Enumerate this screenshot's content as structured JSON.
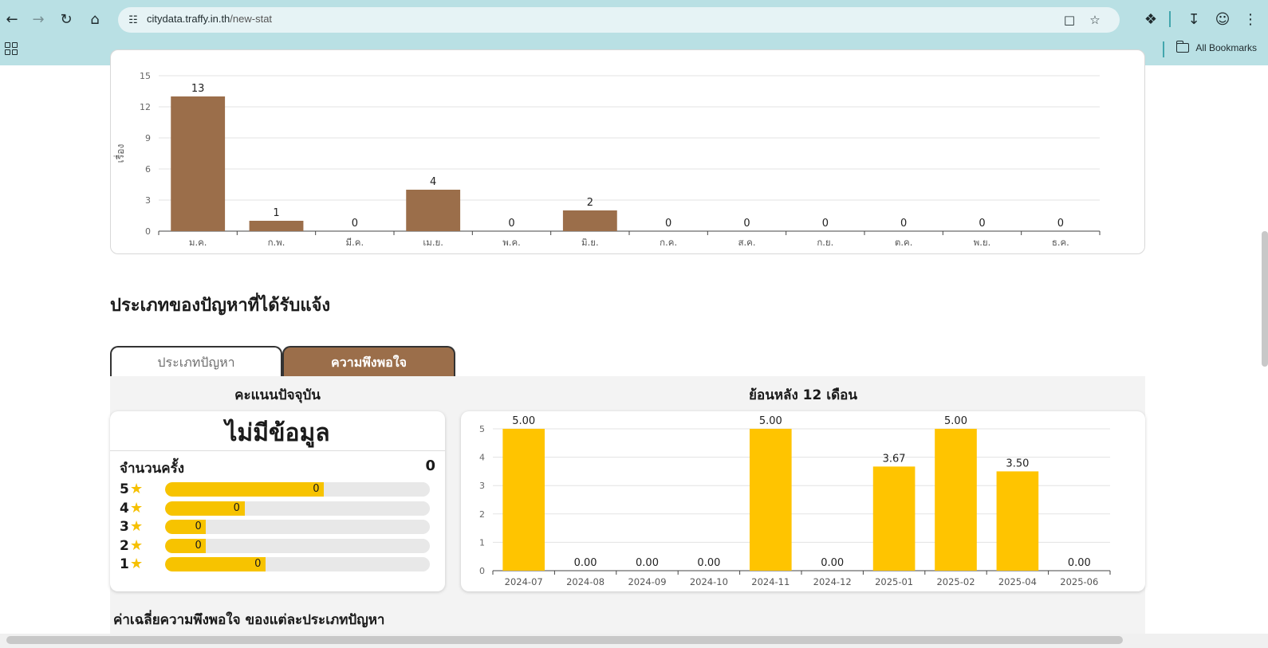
{
  "browser": {
    "url_host": "citydata.traffy.in.th",
    "url_path": "/new-stat",
    "bookmarks_label": "All Bookmarks"
  },
  "section_title": "ประเภทของปัญหาที่ได้รับแจ้ง",
  "tabs": [
    {
      "label": "ประเภทปัญหา",
      "active": false
    },
    {
      "label": "ความพึงพอใจ",
      "active": true
    }
  ],
  "satisfaction": {
    "current_heading": "คะแนนปัจจุบัน",
    "history_heading": "ย้อนหลัง 12 เดือน",
    "no_data": "ไม่มีข้อมูล",
    "count_label": "จำนวนครั้ง",
    "count_value": "0",
    "ratings": [
      {
        "stars": "5",
        "value": "0",
        "fill": 0.6
      },
      {
        "stars": "4",
        "value": "0",
        "fill": 0.3
      },
      {
        "stars": "3",
        "value": "0",
        "fill": 0.155
      },
      {
        "stars": "2",
        "value": "0",
        "fill": 0.155
      },
      {
        "stars": "1",
        "value": "0",
        "fill": 0.38
      }
    ],
    "avg_title": "ค่าเฉลี่ยความพึงพอใจ ของแต่ละประเภทปัญหา"
  },
  "chart_data": [
    {
      "type": "bar",
      "ylabel": "เรื่อง",
      "categories": [
        "ม.ค.",
        "ก.พ.",
        "มี.ค.",
        "เม.ย.",
        "พ.ค.",
        "มิ.ย.",
        "ก.ค.",
        "ส.ค.",
        "ก.ย.",
        "ต.ค.",
        "พ.ย.",
        "ธ.ค."
      ],
      "values": [
        13,
        1,
        0,
        4,
        0,
        2,
        0,
        0,
        0,
        0,
        0,
        0
      ],
      "labels": [
        "13",
        "1",
        "0",
        "4",
        "0",
        "2",
        "0",
        "0",
        "0",
        "0",
        "0",
        "0"
      ],
      "ylim": [
        0,
        15
      ],
      "yticks": [
        "0",
        "3",
        "6",
        "9",
        "12",
        "15"
      ],
      "color": "#9b6e4a",
      "grid": true
    },
    {
      "type": "bar",
      "categories": [
        "2024-07",
        "2024-08",
        "2024-09",
        "2024-10",
        "2024-11",
        "2024-12",
        "2025-01",
        "2025-02",
        "2025-04",
        "2025-06"
      ],
      "values": [
        5.0,
        0.0,
        0.0,
        0.0,
        5.0,
        0.0,
        3.67,
        5.0,
        3.5,
        0.0
      ],
      "labels": [
        "5.00",
        "0.00",
        "0.00",
        "0.00",
        "5.00",
        "0.00",
        "3.67",
        "5.00",
        "3.50",
        "0.00"
      ],
      "ylim": [
        0,
        5
      ],
      "yticks": [
        "0",
        "1",
        "2",
        "3",
        "4",
        "5"
      ],
      "color": "#ffc400",
      "grid": true
    }
  ]
}
